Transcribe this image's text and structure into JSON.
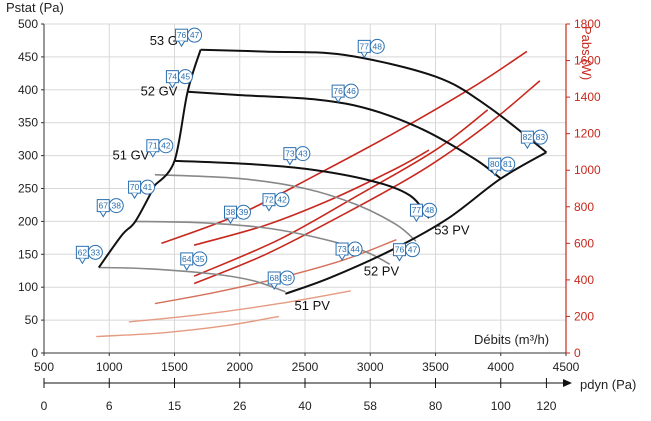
{
  "chart_data": {
    "type": "line",
    "y_title": "Pstat (Pa)",
    "y2_title": "Pabs (W)",
    "x_title": "Débits (m³/h)",
    "x2_title": "pdyn (Pa)",
    "x_ticks": [
      500,
      1000,
      1500,
      2000,
      2500,
      3000,
      3500,
      4000,
      4500
    ],
    "y_ticks": [
      0,
      50,
      100,
      150,
      200,
      250,
      300,
      350,
      400,
      450,
      500
    ],
    "y2_ticks": [
      0,
      200,
      400,
      600,
      800,
      1000,
      1200,
      1400,
      1600,
      1800
    ],
    "x2_ticks": [
      {
        "label": "0",
        "at": 500
      },
      {
        "label": "6",
        "at": 1000
      },
      {
        "label": "15",
        "at": 1500
      },
      {
        "label": "26",
        "at": 2000
      },
      {
        "label": "40",
        "at": 2500
      },
      {
        "label": "58",
        "at": 3000
      },
      {
        "label": "80",
        "at": 3500
      },
      {
        "label": "100",
        "at": 4000
      },
      {
        "label": "120",
        "at": 4350
      }
    ],
    "xlim": [
      500,
      4500
    ],
    "ylim": [
      0,
      500
    ],
    "y2lim": [
      0,
      1800
    ],
    "pressure_series": [
      {
        "color": "#111111",
        "points": [
          [
            1700,
            461
          ],
          [
            2200,
            458
          ],
          [
            2800,
            453
          ],
          [
            3500,
            420
          ],
          [
            3900,
            375
          ],
          [
            4350,
            305
          ]
        ]
      },
      {
        "color": "#111111",
        "points": [
          [
            1600,
            397
          ],
          [
            2000,
            392
          ],
          [
            2600,
            385
          ],
          [
            3000,
            370
          ],
          [
            3400,
            340
          ],
          [
            3800,
            295
          ],
          [
            4000,
            265
          ]
        ]
      },
      {
        "color": "#111111",
        "points": [
          [
            1500,
            292
          ],
          [
            2000,
            288
          ],
          [
            2500,
            280
          ],
          [
            3000,
            262
          ],
          [
            3300,
            240
          ],
          [
            3450,
            205
          ]
        ]
      },
      {
        "color": "#888888",
        "points": [
          [
            1350,
            271
          ],
          [
            2000,
            265
          ],
          [
            2500,
            250
          ],
          [
            2900,
            225
          ],
          [
            3200,
            195
          ],
          [
            3350,
            170
          ]
        ]
      },
      {
        "color": "#888888",
        "points": [
          [
            1200,
            200
          ],
          [
            1700,
            198
          ],
          [
            2200,
            190
          ],
          [
            2600,
            175
          ],
          [
            2950,
            155
          ],
          [
            3150,
            135
          ]
        ]
      },
      {
        "color": "#888888",
        "points": [
          [
            920,
            130
          ],
          [
            1300,
            128
          ],
          [
            1800,
            120
          ],
          [
            2100,
            110
          ],
          [
            2350,
            93
          ]
        ]
      },
      {
        "color": "#111111",
        "points": [
          [
            1350,
            255
          ],
          [
            1500,
            292
          ],
          [
            1600,
            397
          ],
          [
            1700,
            461
          ]
        ]
      },
      {
        "color": "#111111",
        "points": [
          [
            920,
            130
          ],
          [
            1100,
            180
          ],
          [
            1200,
            200
          ],
          [
            1350,
            255
          ]
        ]
      },
      {
        "color": "#111111",
        "points": [
          [
            2350,
            90
          ],
          [
            2700,
            115
          ],
          [
            3200,
            160
          ],
          [
            3600,
            205
          ],
          [
            4000,
            265
          ],
          [
            4350,
            305
          ]
        ]
      }
    ],
    "power_series": [
      {
        "color": "#c8281e",
        "width": 1.6,
        "points": [
          [
            1650,
            380
          ],
          [
            2200,
            540
          ],
          [
            2800,
            760
          ],
          [
            3400,
            1000
          ],
          [
            3900,
            1250
          ],
          [
            4300,
            1490
          ]
        ]
      },
      {
        "color": "#c8281e",
        "width": 1.6,
        "points": [
          [
            1650,
            420
          ],
          [
            2300,
            620
          ],
          [
            2900,
            860
          ],
          [
            3500,
            1110
          ],
          [
            3900,
            1330
          ]
        ]
      },
      {
        "color": "#c8281e",
        "width": 1.6,
        "points": [
          [
            1400,
            600
          ],
          [
            2000,
            760
          ],
          [
            2600,
            980
          ],
          [
            3200,
            1210
          ],
          [
            3800,
            1460
          ],
          [
            4200,
            1650
          ]
        ]
      },
      {
        "color": "#c8281e",
        "width": 1.6,
        "points": [
          [
            1650,
            590
          ],
          [
            2200,
            700
          ],
          [
            2700,
            840
          ],
          [
            3200,
            1010
          ],
          [
            3450,
            1110
          ]
        ]
      },
      {
        "color": "#d4705a",
        "width": 1.4,
        "points": [
          [
            1350,
            270
          ],
          [
            1800,
            330
          ],
          [
            2300,
            410
          ],
          [
            2800,
            510
          ],
          [
            3200,
            620
          ]
        ]
      },
      {
        "color": "#e59a82",
        "width": 1.4,
        "points": [
          [
            1150,
            170
          ],
          [
            1700,
            210
          ],
          [
            2300,
            270
          ],
          [
            2850,
            340
          ]
        ]
      },
      {
        "color": "#e59a82",
        "width": 1.4,
        "points": [
          [
            900,
            90
          ],
          [
            1400,
            110
          ],
          [
            1900,
            150
          ],
          [
            2300,
            200
          ]
        ]
      }
    ],
    "curve_labels": [
      {
        "text": "53 GV",
        "x": 1310,
        "y": 468
      },
      {
        "text": "52 GV",
        "x": 1240,
        "y": 391
      },
      {
        "text": "51 GV",
        "x": 1025,
        "y": 294
      },
      {
        "text": "53 PV",
        "x": 3490,
        "y": 180
      },
      {
        "text": "52 PV",
        "x": 2950,
        "y": 118
      },
      {
        "text": "51 PV",
        "x": 2420,
        "y": 65
      }
    ],
    "tags": [
      {
        "square": "76",
        "circle": "47",
        "x": 1600,
        "y": 483
      },
      {
        "square": "77",
        "circle": "48",
        "x": 3000,
        "y": 466
      },
      {
        "square": "74",
        "circle": "45",
        "x": 1530,
        "y": 420
      },
      {
        "square": "76",
        "circle": "46",
        "x": 2800,
        "y": 398
      },
      {
        "square": "71",
        "circle": "42",
        "x": 1380,
        "y": 315
      },
      {
        "square": "73",
        "circle": "43",
        "x": 2430,
        "y": 303
      },
      {
        "square": "80",
        "circle": "81",
        "x": 4000,
        "y": 287
      },
      {
        "square": "82",
        "circle": "83",
        "x": 4250,
        "y": 328
      },
      {
        "square": "70",
        "circle": "41",
        "x": 1240,
        "y": 252
      },
      {
        "square": "72",
        "circle": "42",
        "x": 2270,
        "y": 233
      },
      {
        "square": "67",
        "circle": "38",
        "x": 1000,
        "y": 224
      },
      {
        "square": "38",
        "circle": "39",
        "x": 1975,
        "y": 214
      },
      {
        "square": "77",
        "circle": "48",
        "x": 3400,
        "y": 217
      },
      {
        "square": "62",
        "circle": "33",
        "x": 840,
        "y": 153
      },
      {
        "square": "64",
        "circle": "35",
        "x": 1640,
        "y": 143
      },
      {
        "square": "73",
        "circle": "44",
        "x": 2830,
        "y": 158
      },
      {
        "square": "76",
        "circle": "47",
        "x": 3270,
        "y": 157
      },
      {
        "square": "68",
        "circle": "39",
        "x": 2310,
        "y": 114
      }
    ]
  }
}
